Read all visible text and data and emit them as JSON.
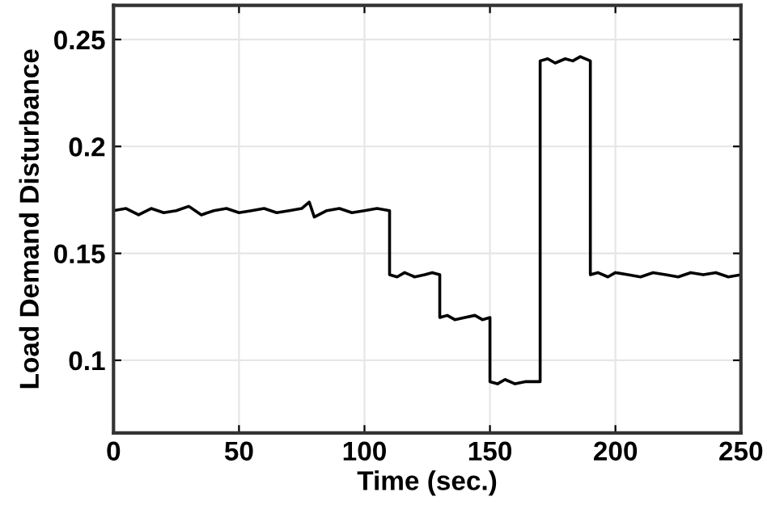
{
  "chart_data": {
    "type": "line",
    "xlabel": "Time (sec.)",
    "ylabel": "Load Demand Disturbance",
    "xlim": [
      0,
      250
    ],
    "ylim": [
      0.066,
      0.266
    ],
    "xticks": [
      0,
      50,
      100,
      150,
      200,
      250
    ],
    "yticks": [
      0.1,
      0.15,
      0.2,
      0.25
    ],
    "grid": true,
    "marker": "none",
    "line_style": "solid",
    "series": [
      {
        "color": "#000000",
        "x": [
          0,
          5,
          10,
          15,
          20,
          25,
          30,
          35,
          40,
          45,
          50,
          55,
          60,
          65,
          70,
          75,
          78,
          80,
          85,
          90,
          95,
          100,
          105,
          110,
          110,
          113,
          116,
          120,
          124,
          127,
          130,
          130,
          133,
          136,
          140,
          144,
          147,
          150,
          150,
          153,
          156,
          160,
          164,
          167,
          170,
          170,
          173,
          176,
          180,
          183,
          186,
          190,
          190,
          193,
          197,
          200,
          205,
          210,
          215,
          220,
          225,
          230,
          235,
          240,
          245,
          250
        ],
        "values": [
          0.17,
          0.171,
          0.168,
          0.171,
          0.169,
          0.17,
          0.172,
          0.168,
          0.17,
          0.171,
          0.169,
          0.17,
          0.171,
          0.169,
          0.17,
          0.171,
          0.174,
          0.167,
          0.17,
          0.171,
          0.169,
          0.17,
          0.171,
          0.17,
          0.14,
          0.139,
          0.141,
          0.139,
          0.14,
          0.141,
          0.14,
          0.12,
          0.121,
          0.119,
          0.12,
          0.121,
          0.119,
          0.12,
          0.09,
          0.089,
          0.091,
          0.089,
          0.09,
          0.09,
          0.09,
          0.24,
          0.241,
          0.239,
          0.241,
          0.24,
          0.242,
          0.24,
          0.14,
          0.141,
          0.139,
          0.141,
          0.14,
          0.139,
          0.141,
          0.14,
          0.139,
          0.141,
          0.14,
          0.141,
          0.139,
          0.14
        ]
      }
    ]
  }
}
